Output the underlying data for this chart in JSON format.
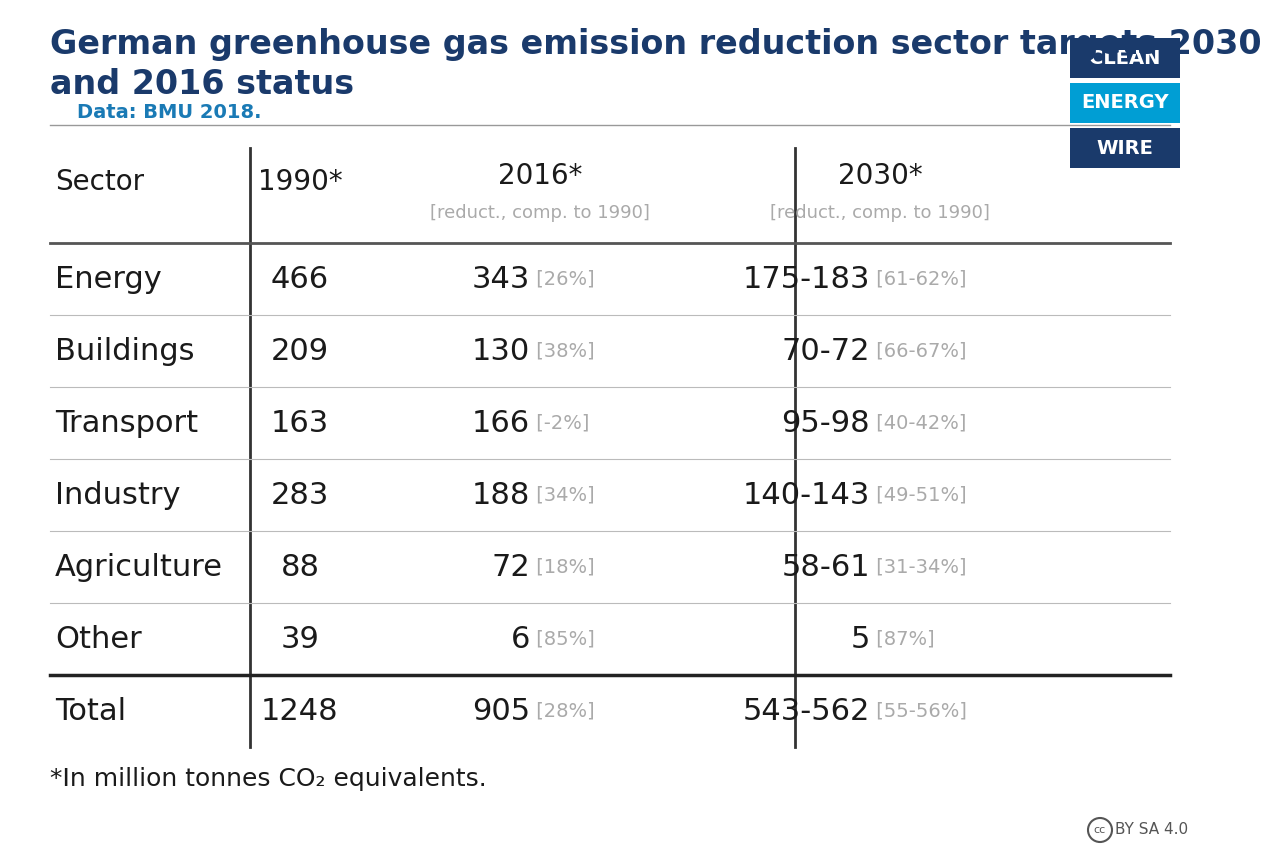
{
  "title_line1": "German greenhouse gas emission reduction sector targets 2030",
  "title_line2": "and 2016 status",
  "subtitle": "    Data: BMU 2018.",
  "title_color": "#1a3a6b",
  "subtitle_color": "#1a7ab5",
  "background_color": "#ffffff",
  "sectors": [
    "Energy",
    "Buildings",
    "Transport",
    "Industry",
    "Agriculture",
    "Other",
    "Total"
  ],
  "col_1990": [
    "466",
    "209",
    "163",
    "283",
    "88",
    "39",
    "1248"
  ],
  "col_2016_main": [
    "343",
    "130",
    "166",
    "188",
    "72",
    "6",
    "905"
  ],
  "col_2016_bracket": [
    " [26%]",
    " [38%]",
    " [-2%]",
    " [34%]",
    " [18%]",
    " [85%]",
    " [28%]"
  ],
  "col_2030_main": [
    "175-183",
    "70-72",
    "95-98",
    "140-143",
    "58-61",
    "5",
    "543-562"
  ],
  "col_2030_bracket": [
    " [61-62%]",
    " [66-67%]",
    " [40-42%]",
    " [49-51%]",
    " [31-34%]",
    " [87%]",
    " [55-56%]"
  ],
  "logo_clean_color": "#1a3a6b",
  "logo_energy_color": "#009ed4",
  "logo_wire_color": "#1a3a6b",
  "footnote": "*In million tonnes CO₂ equivalents.",
  "header_col_labels": [
    "Sector",
    "1990*",
    "2016*",
    "2030*"
  ],
  "header_sub2016": "[reduct., comp. to 1990]",
  "header_sub2030": "[reduct., comp. to 1990]"
}
